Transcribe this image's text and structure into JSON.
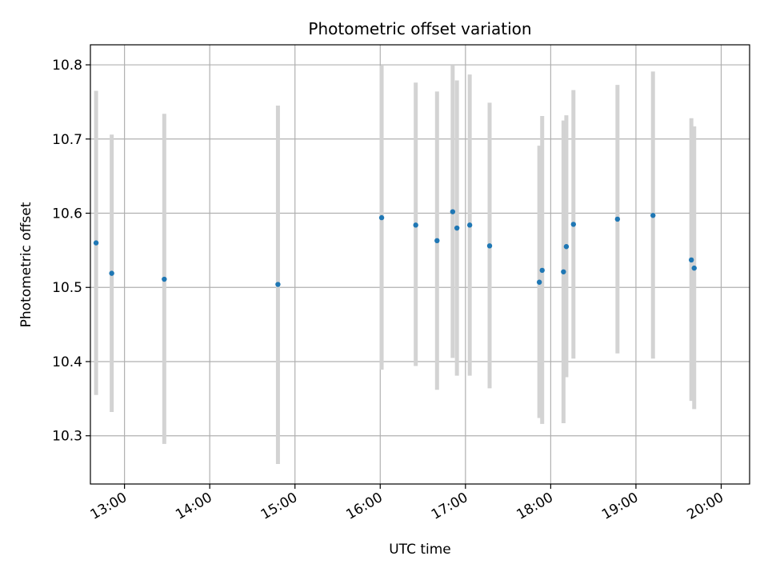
{
  "chart_data": {
    "type": "scatter",
    "title": "Photometric offset variation",
    "xlabel": "UTC time",
    "ylabel": "Photometric offset",
    "x_ticks": [
      "13:00",
      "14:00",
      "15:00",
      "16:00",
      "17:00",
      "18:00",
      "19:00",
      "20:00"
    ],
    "y_ticks": [
      "10.3",
      "10.4",
      "10.5",
      "10.6",
      "10.7",
      "10.8"
    ],
    "xlim": [
      "12:36",
      "20:20"
    ],
    "ylim": [
      10.235,
      10.827
    ],
    "grid": true,
    "legend": "none",
    "colors": {
      "points": "#1f77b4",
      "errorbars": "#d3d3d3",
      "grid": "#b0b0b0"
    },
    "points": [
      {
        "x": "12:40",
        "y": 10.56,
        "ylow": 10.355,
        "yhigh": 10.765
      },
      {
        "x": "12:51",
        "y": 10.519,
        "ylow": 10.332,
        "yhigh": 10.706
      },
      {
        "x": "13:28",
        "y": 10.511,
        "ylow": 10.289,
        "yhigh": 10.734
      },
      {
        "x": "14:48",
        "y": 10.504,
        "ylow": 10.262,
        "yhigh": 10.745
      },
      {
        "x": "16:01",
        "y": 10.594,
        "ylow": 10.389,
        "yhigh": 10.799
      },
      {
        "x": "16:25",
        "y": 10.584,
        "ylow": 10.394,
        "yhigh": 10.776
      },
      {
        "x": "16:40",
        "y": 10.563,
        "ylow": 10.362,
        "yhigh": 10.764
      },
      {
        "x": "16:51",
        "y": 10.602,
        "ylow": 10.405,
        "yhigh": 10.799
      },
      {
        "x": "16:54",
        "y": 10.58,
        "ylow": 10.381,
        "yhigh": 10.779
      },
      {
        "x": "17:03",
        "y": 10.584,
        "ylow": 10.381,
        "yhigh": 10.787
      },
      {
        "x": "17:17",
        "y": 10.556,
        "ylow": 10.364,
        "yhigh": 10.749
      },
      {
        "x": "17:52",
        "y": 10.507,
        "ylow": 10.324,
        "yhigh": 10.691
      },
      {
        "x": "17:54",
        "y": 10.523,
        "ylow": 10.316,
        "yhigh": 10.731
      },
      {
        "x": "18:09",
        "y": 10.521,
        "ylow": 10.317,
        "yhigh": 10.725
      },
      {
        "x": "18:11",
        "y": 10.555,
        "ylow": 10.379,
        "yhigh": 10.732
      },
      {
        "x": "18:16",
        "y": 10.585,
        "ylow": 10.404,
        "yhigh": 10.766
      },
      {
        "x": "18:47",
        "y": 10.592,
        "ylow": 10.411,
        "yhigh": 10.773
      },
      {
        "x": "19:12",
        "y": 10.597,
        "ylow": 10.404,
        "yhigh": 10.791
      },
      {
        "x": "19:39",
        "y": 10.537,
        "ylow": 10.347,
        "yhigh": 10.728
      },
      {
        "x": "19:41",
        "y": 10.526,
        "ylow": 10.336,
        "yhigh": 10.717
      }
    ]
  }
}
